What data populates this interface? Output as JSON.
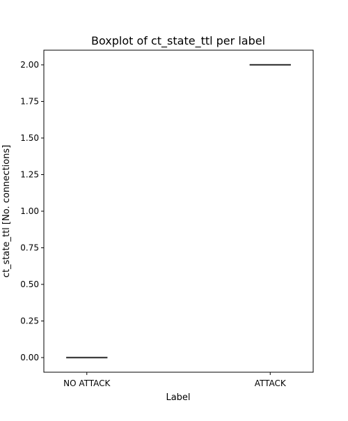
{
  "chart_data": {
    "type": "box",
    "title": "Boxplot of ct_state_ttl per label",
    "xlabel": "Label",
    "ylabel": "ct_state_ttl [No. connections]",
    "categories": [
      "NO ATTACK",
      "ATTACK"
    ],
    "boxes": [
      {
        "category": "NO ATTACK",
        "min": 0,
        "q1": 0,
        "median": 0,
        "q3": 0,
        "max": 0
      },
      {
        "category": "ATTACK",
        "min": 2,
        "q1": 2,
        "median": 2,
        "q3": 2,
        "max": 2
      }
    ],
    "ylim": [
      -0.1,
      2.1
    ],
    "yticks": [
      0.0,
      0.25,
      0.5,
      0.75,
      1.0,
      1.25,
      1.5,
      1.75,
      2.0
    ],
    "ytick_labels": [
      "0.00",
      "0.25",
      "0.50",
      "0.75",
      "1.00",
      "1.25",
      "1.50",
      "1.75",
      "2.00"
    ],
    "grid": false,
    "colors": {
      "box_line": "#3f3f3f",
      "axis": "#000000"
    }
  }
}
